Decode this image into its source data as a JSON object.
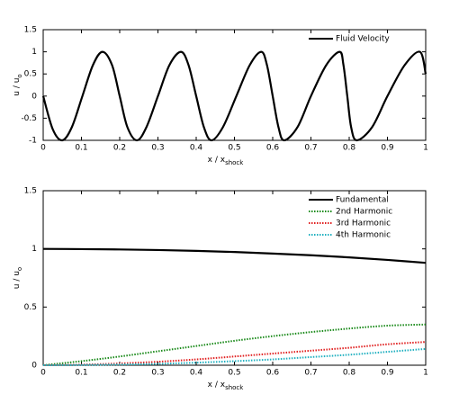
{
  "chart_data": [
    {
      "type": "line",
      "xlabel": {
        "text": "x / x",
        "sub": "shock"
      },
      "ylabel": {
        "text": "u / u",
        "sub": "o"
      },
      "x": [
        0,
        0.025,
        0.05,
        0.075,
        0.1025,
        0.13,
        0.155,
        0.18,
        0.2,
        0.22,
        0.245,
        0.27,
        0.3,
        0.33,
        0.36,
        0.38,
        0.4,
        0.42,
        0.44,
        0.47,
        0.505,
        0.54,
        0.57,
        0.585,
        0.6,
        0.615,
        0.63,
        0.665,
        0.7,
        0.74,
        0.775,
        0.785,
        0.795,
        0.805,
        0.82,
        0.86,
        0.9,
        0.945,
        0.985,
        1
      ],
      "series": [
        {
          "name": "Fluid Velocity",
          "color": "#000000",
          "linestyle": "solid",
          "values": [
            0,
            -0.75,
            -1,
            -0.7,
            0,
            0.7,
            1,
            0.7,
            0,
            -0.7,
            -1,
            -0.7,
            0,
            0.7,
            1,
            0.7,
            0,
            -0.7,
            -1,
            -0.7,
            0,
            0.7,
            1,
            0.7,
            0,
            -0.7,
            -1,
            -0.7,
            0,
            0.7,
            1,
            0.7,
            0,
            -0.7,
            -1,
            -0.7,
            0,
            0.7,
            1,
            0.5
          ]
        }
      ],
      "xlim": [
        0,
        1
      ],
      "xticks": [
        0,
        0.1,
        0.2,
        0.3,
        0.4,
        0.5,
        0.6,
        0.7,
        0.8,
        0.9,
        1
      ],
      "ylim": [
        -1,
        1.5
      ],
      "yticks": [
        -1,
        -0.5,
        0,
        0.5,
        1,
        1.5
      ],
      "grid": false,
      "legend": "top-right"
    },
    {
      "type": "line",
      "xlabel": {
        "text": "x / x",
        "sub": "shock"
      },
      "ylabel": {
        "text": "u / u",
        "sub": "o"
      },
      "x": [
        0,
        0.1,
        0.2,
        0.3,
        0.4,
        0.5,
        0.6,
        0.7,
        0.8,
        0.9,
        1
      ],
      "series": [
        {
          "name": "Fundamental",
          "color": "#000000",
          "linestyle": "solid",
          "values": [
            1,
            0.998,
            0.995,
            0.99,
            0.983,
            0.973,
            0.96,
            0.945,
            0.927,
            0.905,
            0.88
          ]
        },
        {
          "name": "2nd Harmonic",
          "color": "#1a8a1a",
          "linestyle": "dotted",
          "values": [
            0,
            0.035,
            0.075,
            0.12,
            0.165,
            0.21,
            0.25,
            0.285,
            0.315,
            0.34,
            0.35
          ]
        },
        {
          "name": "3rd Harmonic",
          "color": "#e02020",
          "linestyle": "dotted",
          "values": [
            0,
            0.005,
            0.015,
            0.03,
            0.05,
            0.075,
            0.1,
            0.125,
            0.15,
            0.18,
            0.2
          ]
        },
        {
          "name": "4th Harmonic",
          "color": "#20b0c0",
          "linestyle": "dotted",
          "values": [
            0,
            0.002,
            0.006,
            0.012,
            0.022,
            0.035,
            0.05,
            0.07,
            0.09,
            0.115,
            0.14
          ]
        }
      ],
      "xlim": [
        0,
        1
      ],
      "xticks": [
        0,
        0.1,
        0.2,
        0.3,
        0.4,
        0.5,
        0.6,
        0.7,
        0.8,
        0.9,
        1
      ],
      "ylim": [
        0,
        1.5
      ],
      "yticks": [
        0,
        0.5,
        1,
        1.5
      ],
      "grid": false,
      "legend": "top-right"
    }
  ]
}
